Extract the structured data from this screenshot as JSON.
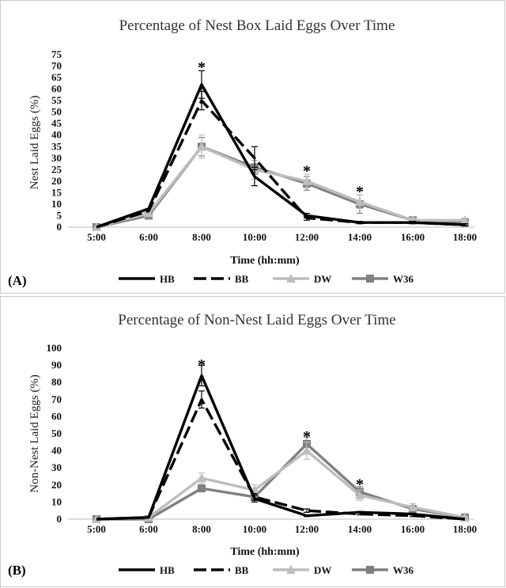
{
  "chart_data": [
    {
      "type": "line",
      "panel_label": "(A)",
      "title": "Percentage of Nest Box Laid Eggs Over Time",
      "xlabel": "Time (hh:mm)",
      "ylabel": "Nest Laid Eggs (%)",
      "categories": [
        "5:00",
        "6:00",
        "8:00",
        "10:00",
        "12:00",
        "14:00",
        "16:00",
        "18:00"
      ],
      "ylim": [
        0,
        75
      ],
      "yticks": [
        0,
        5,
        10,
        15,
        20,
        25,
        30,
        35,
        40,
        45,
        50,
        55,
        60,
        65,
        70,
        75
      ],
      "grid": false,
      "legend_position": "bottom",
      "series": [
        {
          "name": "HB",
          "values": [
            0,
            8,
            62,
            22,
            5,
            2,
            2,
            1
          ],
          "errors": [
            0,
            0,
            6,
            4,
            1,
            0.5,
            0.5,
            0.5
          ],
          "color": "#000000",
          "style": "solid",
          "marker": "none"
        },
        {
          "name": "BB",
          "values": [
            0,
            7,
            55,
            30,
            4,
            2,
            2,
            1
          ],
          "errors": [
            0,
            0,
            4,
            5,
            1,
            0.5,
            0.5,
            0.5
          ],
          "color": "#000000",
          "style": "dashed",
          "marker": "none"
        },
        {
          "name": "DW",
          "values": [
            0,
            6,
            35,
            25,
            20,
            11,
            3,
            3
          ],
          "errors": [
            0,
            0.5,
            5,
            4,
            3,
            3,
            1,
            1
          ],
          "color": "#bdbdbd",
          "style": "solid",
          "marker": "triangle"
        },
        {
          "name": "W36",
          "values": [
            0,
            5,
            35,
            26,
            19,
            10,
            3,
            2
          ],
          "errors": [
            0,
            0.5,
            4,
            3,
            3,
            4,
            1,
            1
          ],
          "color": "#808080",
          "style": "solid",
          "marker": "square"
        }
      ],
      "annotations": [
        {
          "text": "*",
          "category": "8:00",
          "y": 70
        },
        {
          "text": "*",
          "category": "12:00",
          "y": 25
        },
        {
          "text": "*",
          "category": "14:00",
          "y": 16
        }
      ]
    },
    {
      "type": "line",
      "panel_label": "(B)",
      "title": "Percentage of Non-Nest Laid Eggs Over Time",
      "xlabel": "Time (hh:mm)",
      "ylabel": "Non-Nest Laid Eggs (%)",
      "categories": [
        "5:00",
        "6:00",
        "8:00",
        "10:00",
        "12:00",
        "14:00",
        "16:00",
        "18:00"
      ],
      "ylim": [
        0,
        100
      ],
      "yticks": [
        0,
        10,
        20,
        30,
        40,
        50,
        60,
        70,
        80,
        90,
        100
      ],
      "grid": false,
      "legend_position": "bottom",
      "series": [
        {
          "name": "HB",
          "values": [
            0,
            1,
            84,
            12,
            2,
            4,
            3,
            0
          ],
          "errors": [
            0,
            0,
            6,
            2,
            0.5,
            0.5,
            0.5,
            0
          ],
          "color": "#000000",
          "style": "solid",
          "marker": "none"
        },
        {
          "name": "BB",
          "values": [
            0,
            1,
            70,
            13,
            5,
            3,
            2,
            0
          ],
          "errors": [
            0,
            0,
            5,
            2,
            1,
            0.5,
            0.5,
            0
          ],
          "color": "#000000",
          "style": "dashed",
          "marker": "none"
        },
        {
          "name": "DW",
          "values": [
            0,
            1,
            24,
            17,
            40,
            14,
            7,
            1
          ],
          "errors": [
            0,
            0,
            3,
            3,
            5,
            3,
            2,
            0.5
          ],
          "color": "#bdbdbd",
          "style": "solid",
          "marker": "triangle"
        },
        {
          "name": "W36",
          "values": [
            0,
            0,
            18,
            13,
            44,
            16,
            6,
            1
          ],
          "errors": [
            0,
            0,
            2,
            3,
            4,
            3,
            2,
            0.5
          ],
          "color": "#808080",
          "style": "solid",
          "marker": "square"
        }
      ],
      "annotations": [
        {
          "text": "*",
          "category": "8:00",
          "y": 91
        },
        {
          "text": "*",
          "category": "12:00",
          "y": 49
        },
        {
          "text": "*",
          "category": "14:00",
          "y": 21
        }
      ]
    }
  ]
}
